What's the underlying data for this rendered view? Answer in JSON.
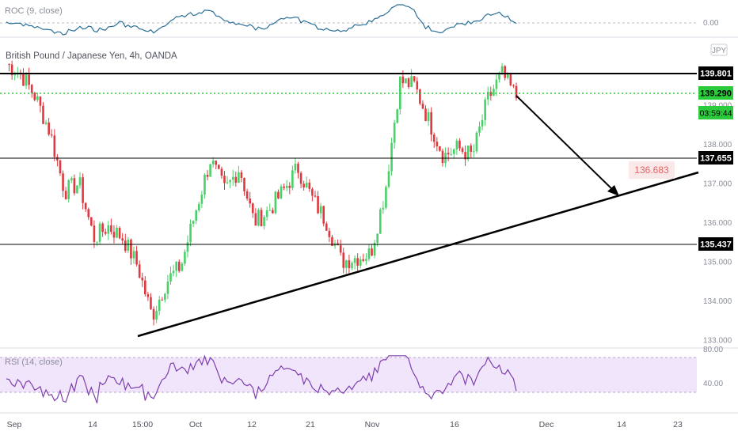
{
  "colors": {
    "up": "#4ad06a",
    "down": "#e0383e",
    "roc_line": "#2a6f97",
    "rsi_line": "#7e3fae",
    "rsi_band": "#f1e5fb",
    "level_line": "#000000",
    "dotted_level": "#2bcc3c",
    "target_badge_bg": "#fbe9e9",
    "target_badge_text": "#e46262"
  },
  "roc_pane": {
    "label": "ROC (9, close)",
    "zero_tick": "0.00"
  },
  "main_pane": {
    "title": "British Pound / Japanese Yen, 4h, OANDA",
    "currency_badge": "JPY",
    "price_badges": {
      "resistance": "139.801",
      "last_price": "139.290",
      "countdown": "03:59:44",
      "mid_level": "137.655",
      "support": "135.437"
    },
    "target_label": "136.683"
  },
  "rsi_pane": {
    "label": "RSI (14, close)",
    "ticks": [
      "80.00",
      "40.00"
    ]
  },
  "chart_data": {
    "type": "candlestick",
    "title": "British Pound / Japanese Yen, 4h, OANDA",
    "y_ticks": [
      "139.000",
      "138.000",
      "137.000",
      "136.000",
      "135.000",
      "134.000",
      "133.000"
    ],
    "y_tick_values": [
      139,
      138,
      137,
      136,
      135,
      134,
      133
    ],
    "x_ticks": [
      "Sep",
      "14",
      "15:00",
      "Oct",
      "12",
      "21",
      "Nov",
      "16",
      "Dec",
      "14",
      "23"
    ],
    "ylim": [
      132.75,
      140.4
    ],
    "price_path": [
      [
        139.9,
        140.05
      ],
      [
        140.0,
        139.8
      ],
      [
        139.6,
        139.2
      ],
      [
        139.2,
        138.3
      ],
      [
        137.7,
        136.8
      ],
      [
        137.6,
        137.0
      ],
      [
        135.9,
        135.6
      ],
      [
        135.7,
        135.9
      ],
      [
        135.9,
        135.6
      ],
      [
        134.6,
        134.9
      ],
      [
        134.7,
        133.6
      ],
      [
        133.4,
        134.5
      ],
      [
        134.4,
        134.9
      ],
      [
        135.4,
        136.3
      ],
      [
        136.8,
        137.6
      ],
      [
        137.1,
        136.8
      ],
      [
        137.7,
        137.4
      ],
      [
        137.1,
        136.0
      ],
      [
        135.8,
        136.3
      ],
      [
        136.5,
        136.8
      ],
      [
        137.3,
        137.4
      ],
      [
        137.6,
        136.6
      ],
      [
        136.3,
        136.0
      ],
      [
        135.7,
        135.0
      ],
      [
        134.8,
        135.1
      ],
      [
        135.0,
        135.2
      ],
      [
        136.0,
        136.8
      ],
      [
        138.0,
        139.6
      ],
      [
        139.9,
        139.5
      ],
      [
        139.0,
        138.6
      ],
      [
        137.9,
        137.7
      ],
      [
        138.1,
        137.9
      ],
      [
        137.3,
        137.7
      ],
      [
        138.3,
        139.1
      ],
      [
        139.5,
        139.8
      ],
      [
        139.7,
        139.2
      ]
    ],
    "horizontal_levels": [
      139.801,
      139.29,
      137.655,
      135.437
    ],
    "trendline": {
      "from": [
        "15:00",
        133.2
      ],
      "to": [
        "23",
        137.3
      ]
    },
    "projection_target": 136.683,
    "roc_zero": 0.0,
    "rsi_ticks": [
      80,
      40
    ]
  }
}
